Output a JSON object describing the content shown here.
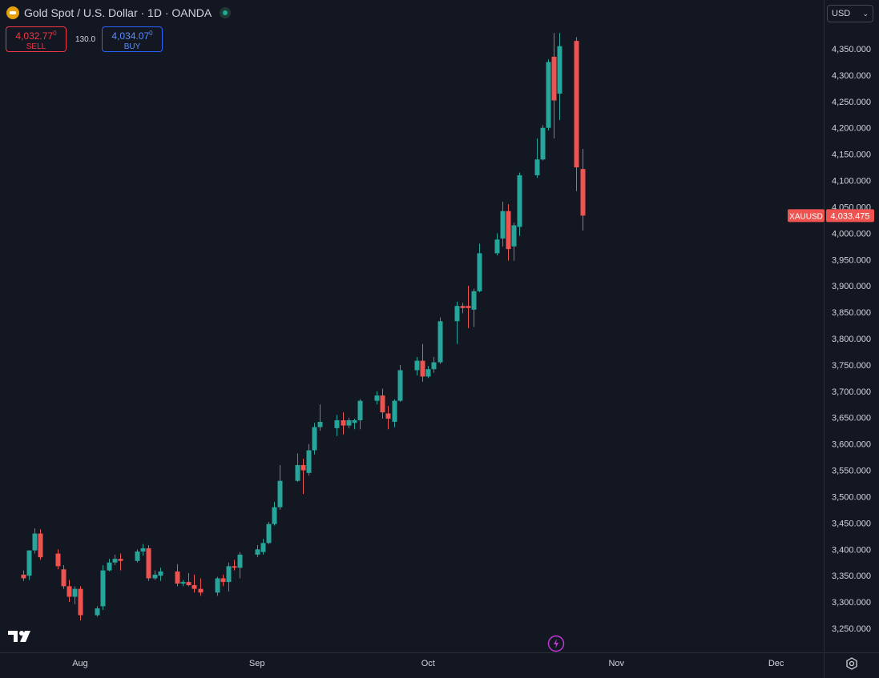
{
  "header": {
    "symbol_title": "Gold Spot / U.S. Dollar · 1D · OANDA",
    "sell_price": "4,032.77",
    "sell_price_sup": "0",
    "sell_label": "SELL",
    "spread": "130.0",
    "buy_price": "4,034.07",
    "buy_price_sup": "0",
    "buy_label": "BUY"
  },
  "currency": "USD",
  "colors": {
    "up": "#26a69a",
    "down": "#ef5350",
    "background": "#131722",
    "price_label_bg": "#ef5350"
  },
  "chart_data": {
    "type": "candlestick",
    "symbol_label": "XAUUSD",
    "last_price": "4,033.475",
    "ylim": [
      3205,
      4400
    ],
    "y_ticks": [
      "3,250.000",
      "3,300.000",
      "3,350.000",
      "3,400.000",
      "3,450.000",
      "3,500.000",
      "3,550.000",
      "3,600.000",
      "3,650.000",
      "3,700.000",
      "3,750.000",
      "3,800.000",
      "3,850.000",
      "3,900.000",
      "3,950.000",
      "4,000.000",
      "4,050.000",
      "4,100.000",
      "4,150.000",
      "4,200.000",
      "4,250.000",
      "4,300.000",
      "4,350.000"
    ],
    "x_labels": [
      {
        "label": "Aug",
        "date": "2025-08-01"
      },
      {
        "label": "Sep",
        "date": "2025-09-01"
      },
      {
        "label": "Oct",
        "date": "2025-10-01"
      },
      {
        "label": "Nov",
        "date": "2025-11-03"
      },
      {
        "label": "Dec",
        "date": "2025-12-01"
      }
    ],
    "candles": [
      {
        "date": "2025-07-22",
        "o": 3352,
        "h": 3360,
        "l": 3340,
        "c": 3345
      },
      {
        "date": "2025-07-23",
        "o": 3350,
        "h": 3398,
        "l": 3342,
        "c": 3398
      },
      {
        "date": "2025-07-24",
        "o": 3398,
        "h": 3440,
        "l": 3392,
        "c": 3430
      },
      {
        "date": "2025-07-25",
        "o": 3430,
        "h": 3438,
        "l": 3380,
        "c": 3385
      },
      {
        "date": "2025-07-28",
        "o": 3392,
        "h": 3400,
        "l": 3362,
        "c": 3368
      },
      {
        "date": "2025-07-29",
        "o": 3362,
        "h": 3370,
        "l": 3325,
        "c": 3330
      },
      {
        "date": "2025-07-30",
        "o": 3330,
        "h": 3342,
        "l": 3300,
        "c": 3310
      },
      {
        "date": "2025-07-31",
        "o": 3310,
        "h": 3330,
        "l": 3296,
        "c": 3325
      },
      {
        "date": "2025-08-01",
        "o": 3325,
        "h": 3330,
        "l": 3265,
        "c": 3275
      },
      {
        "date": "2025-08-04",
        "o": 3275,
        "h": 3292,
        "l": 3272,
        "c": 3288
      },
      {
        "date": "2025-08-05",
        "o": 3292,
        "h": 3370,
        "l": 3285,
        "c": 3360
      },
      {
        "date": "2025-08-06",
        "o": 3360,
        "h": 3382,
        "l": 3358,
        "c": 3375
      },
      {
        "date": "2025-08-07",
        "o": 3375,
        "h": 3390,
        "l": 3370,
        "c": 3382
      },
      {
        "date": "2025-08-08",
        "o": 3382,
        "h": 3392,
        "l": 3360,
        "c": 3378
      },
      {
        "date": "2025-08-11",
        "o": 3378,
        "h": 3400,
        "l": 3375,
        "c": 3396
      },
      {
        "date": "2025-08-12",
        "o": 3396,
        "h": 3410,
        "l": 3388,
        "c": 3402
      },
      {
        "date": "2025-08-13",
        "o": 3402,
        "h": 3408,
        "l": 3340,
        "c": 3345
      },
      {
        "date": "2025-08-14",
        "o": 3345,
        "h": 3360,
        "l": 3342,
        "c": 3352
      },
      {
        "date": "2025-08-15",
        "o": 3350,
        "h": 3365,
        "l": 3340,
        "c": 3358
      },
      {
        "date": "2025-08-18",
        "o": 3358,
        "h": 3372,
        "l": 3330,
        "c": 3335
      },
      {
        "date": "2025-08-19",
        "o": 3335,
        "h": 3342,
        "l": 3330,
        "c": 3338
      },
      {
        "date": "2025-08-20",
        "o": 3338,
        "h": 3355,
        "l": 3330,
        "c": 3332
      },
      {
        "date": "2025-08-21",
        "o": 3332,
        "h": 3352,
        "l": 3318,
        "c": 3325
      },
      {
        "date": "2025-08-22",
        "o": 3325,
        "h": 3345,
        "l": 3312,
        "c": 3318
      },
      {
        "date": "2025-08-25",
        "o": 3318,
        "h": 3348,
        "l": 3312,
        "c": 3345
      },
      {
        "date": "2025-08-26",
        "o": 3345,
        "h": 3352,
        "l": 3330,
        "c": 3338
      },
      {
        "date": "2025-08-27",
        "o": 3338,
        "h": 3375,
        "l": 3320,
        "c": 3368
      },
      {
        "date": "2025-08-28",
        "o": 3368,
        "h": 3380,
        "l": 3360,
        "c": 3365
      },
      {
        "date": "2025-08-29",
        "o": 3365,
        "h": 3395,
        "l": 3345,
        "c": 3390
      },
      {
        "date": "2025-09-01",
        "o": 3390,
        "h": 3408,
        "l": 3385,
        "c": 3400
      },
      {
        "date": "2025-09-02",
        "o": 3395,
        "h": 3420,
        "l": 3390,
        "c": 3412
      },
      {
        "date": "2025-09-03",
        "o": 3412,
        "h": 3452,
        "l": 3410,
        "c": 3448
      },
      {
        "date": "2025-09-04",
        "o": 3448,
        "h": 3490,
        "l": 3445,
        "c": 3480
      },
      {
        "date": "2025-09-05",
        "o": 3480,
        "h": 3560,
        "l": 3475,
        "c": 3530
      },
      {
        "date": "2025-09-08",
        "o": 3530,
        "h": 3582,
        "l": 3528,
        "c": 3560
      },
      {
        "date": "2025-09-09",
        "o": 3560,
        "h": 3572,
        "l": 3505,
        "c": 3550
      },
      {
        "date": "2025-09-10",
        "o": 3545,
        "h": 3600,
        "l": 3540,
        "c": 3588
      },
      {
        "date": "2025-09-11",
        "o": 3588,
        "h": 3640,
        "l": 3580,
        "c": 3632
      },
      {
        "date": "2025-09-12",
        "o": 3632,
        "h": 3675,
        "l": 3625,
        "c": 3642
      },
      {
        "date": "2025-09-15",
        "o": 3630,
        "h": 3655,
        "l": 3615,
        "c": 3645
      },
      {
        "date": "2025-09-16",
        "o": 3645,
        "h": 3660,
        "l": 3618,
        "c": 3635
      },
      {
        "date": "2025-09-17",
        "o": 3635,
        "h": 3650,
        "l": 3630,
        "c": 3645
      },
      {
        "date": "2025-09-18",
        "o": 3640,
        "h": 3648,
        "l": 3628,
        "c": 3645
      },
      {
        "date": "2025-09-19",
        "o": 3645,
        "h": 3685,
        "l": 3628,
        "c": 3682
      },
      {
        "date": "2025-09-22",
        "o": 3682,
        "h": 3700,
        "l": 3675,
        "c": 3692
      },
      {
        "date": "2025-09-23",
        "o": 3692,
        "h": 3705,
        "l": 3648,
        "c": 3660
      },
      {
        "date": "2025-09-24",
        "o": 3658,
        "h": 3672,
        "l": 3628,
        "c": 3648
      },
      {
        "date": "2025-09-25",
        "o": 3642,
        "h": 3685,
        "l": 3632,
        "c": 3682
      },
      {
        "date": "2025-09-26",
        "o": 3682,
        "h": 3750,
        "l": 3680,
        "c": 3740
      },
      {
        "date": "2025-09-29",
        "o": 3740,
        "h": 3765,
        "l": 3730,
        "c": 3758
      },
      {
        "date": "2025-09-30",
        "o": 3758,
        "h": 3790,
        "l": 3718,
        "c": 3728
      },
      {
        "date": "2025-10-01",
        "o": 3728,
        "h": 3748,
        "l": 3725,
        "c": 3742
      },
      {
        "date": "2025-10-02",
        "o": 3742,
        "h": 3765,
        "l": 3735,
        "c": 3755
      },
      {
        "date": "2025-10-03",
        "o": 3755,
        "h": 3840,
        "l": 3752,
        "c": 3833
      },
      {
        "date": "2025-10-06",
        "o": 3833,
        "h": 3870,
        "l": 3790,
        "c": 3862
      },
      {
        "date": "2025-10-07",
        "o": 3862,
        "h": 3868,
        "l": 3848,
        "c": 3858
      },
      {
        "date": "2025-10-08",
        "o": 3862,
        "h": 3900,
        "l": 3820,
        "c": 3858
      },
      {
        "date": "2025-10-09",
        "o": 3855,
        "h": 3895,
        "l": 3822,
        "c": 3890
      },
      {
        "date": "2025-10-10",
        "o": 3890,
        "h": 3980,
        "l": 3888,
        "c": 3962
      },
      {
        "date": "2025-10-13",
        "o": 3962,
        "h": 4000,
        "l": 3958,
        "c": 3988
      },
      {
        "date": "2025-10-14",
        "o": 3990,
        "h": 4060,
        "l": 3975,
        "c": 4042
      },
      {
        "date": "2025-10-15",
        "o": 4042,
        "h": 4055,
        "l": 3948,
        "c": 3970
      },
      {
        "date": "2025-10-16",
        "o": 3975,
        "h": 4020,
        "l": 3948,
        "c": 4015
      },
      {
        "date": "2025-10-17",
        "o": 4012,
        "h": 4115,
        "l": 3995,
        "c": 4110
      },
      {
        "date": "2025-10-20",
        "o": 4110,
        "h": 4180,
        "l": 4105,
        "c": 4140
      },
      {
        "date": "2025-10-21",
        "o": 4140,
        "h": 4205,
        "l": 4138,
        "c": 4200
      },
      {
        "date": "2025-10-22",
        "o": 4200,
        "h": 4330,
        "l": 4195,
        "c": 4325
      },
      {
        "date": "2025-10-23",
        "o": 4335,
        "h": 4380,
        "l": 4180,
        "c": 4252
      },
      {
        "date": "2025-10-24",
        "o": 4265,
        "h": 4380,
        "l": 4215,
        "c": 4355
      },
      {
        "date": "2025-10-27",
        "o": 4365,
        "h": 4372,
        "l": 4080,
        "c": 4125
      },
      {
        "date": "2025-10-28",
        "o": 4122,
        "h": 4160,
        "l": 4005,
        "c": 4033.475
      }
    ]
  }
}
